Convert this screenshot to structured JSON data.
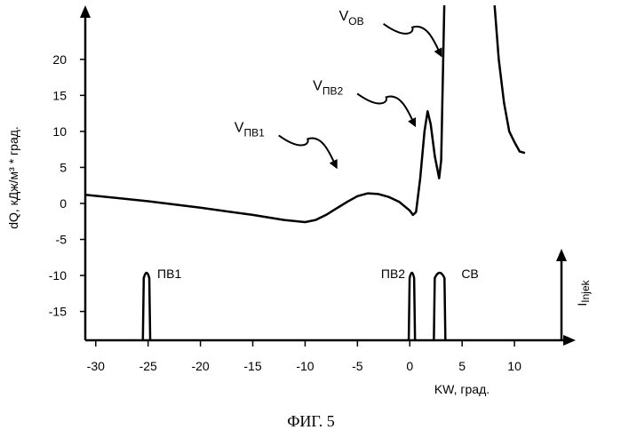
{
  "chart_data": {
    "type": "line",
    "xlabel": "KW, град.",
    "ylabel": "dQ, кДж/м³ * град.",
    "caption": "ФИГ. 5",
    "secondary_axis_label": {
      "main": "I",
      "sub": "Injek"
    },
    "xlim": [
      -31,
      15
    ],
    "ylim": [
      -19,
      27.5
    ],
    "x_ticks": [
      -30,
      -25,
      -20,
      -15,
      -10,
      -5,
      0,
      5,
      10
    ],
    "y_ticks": [
      -15,
      -10,
      -5,
      0,
      5,
      10,
      15,
      20
    ],
    "grid": false,
    "series": [
      {
        "role": "heat-release",
        "x": [
          -31,
          -25,
          -20,
          -15,
          -12,
          -10,
          -9,
          -8,
          -7,
          -6,
          -5,
          -4,
          -3,
          -2,
          -1,
          0,
          0.3,
          0.6,
          1,
          1.4,
          1.7,
          2,
          2.4,
          2.8,
          3.0,
          3.3
        ],
        "y": [
          1.2,
          0.3,
          -0.6,
          -1.6,
          -2.3,
          -2.6,
          -2.3,
          -1.6,
          -0.7,
          0.2,
          1.0,
          1.4,
          1.3,
          0.9,
          0.2,
          -1.0,
          -1.6,
          -1.2,
          3.5,
          10.0,
          12.8,
          11.0,
          6.5,
          3.5,
          6.0,
          27.5
        ]
      },
      {
        "role": "heat-release-tail",
        "x": [
          8.1,
          8.5,
          9.0,
          9.5,
          10.0,
          10.5,
          11.0
        ],
        "y": [
          27.5,
          20.0,
          14.0,
          10.0,
          8.5,
          7.2,
          7.0
        ]
      }
    ],
    "injection_pulses": [
      {
        "label": "ПВ1",
        "x_start": -25.5,
        "x_end": -24.8
      },
      {
        "label": "ПВ2",
        "x_start": -0.1,
        "x_end": 0.5
      },
      {
        "label": "СВ",
        "x_start": 2.3,
        "x_end": 3.4
      }
    ],
    "annotations": [
      {
        "main": "V",
        "sub": "ОВ",
        "points_to": [
          3.0,
          20.5
        ]
      },
      {
        "main": "V",
        "sub": "ПВ2",
        "points_to": [
          0.5,
          10.8
        ]
      },
      {
        "main": "V",
        "sub": "ПВ1",
        "points_to": [
          -7.0,
          5.0
        ]
      }
    ]
  }
}
